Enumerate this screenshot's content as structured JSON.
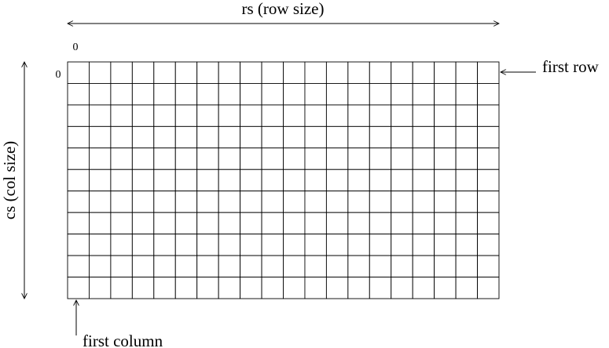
{
  "labels": {
    "row_size": "rs (row size)",
    "col_size": "cs (col size)",
    "first_row": "first row",
    "first_column": "first column",
    "row_origin": "0",
    "col_origin": "0"
  },
  "grid": {
    "columns": 20,
    "rows": 11
  }
}
